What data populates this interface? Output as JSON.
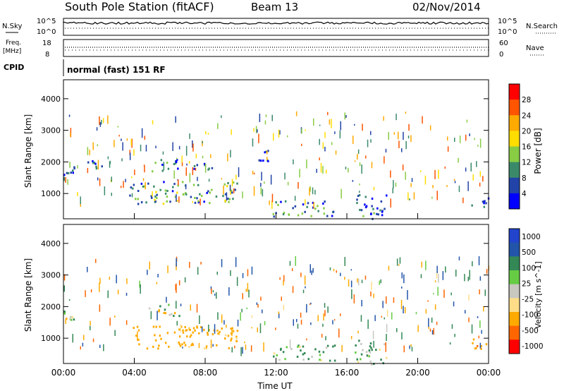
{
  "header": {
    "station": "South Pole Station (fitACF)",
    "beam": "Beam 13",
    "date": "02/Nov/2014"
  },
  "noise_panel": {
    "left_label": "N.Sky",
    "right_label": "N.Search",
    "left_ticks": [
      "10^5",
      "10^0"
    ],
    "right_ticks": [
      "10^5",
      "10^0"
    ]
  },
  "freq_panel": {
    "left_label_1": "Freq.",
    "left_label_2": "[MHz]",
    "right_label": "Nave",
    "left_ticks": [
      "18",
      "8"
    ],
    "right_ticks": [
      "60",
      "0"
    ]
  },
  "cpid": {
    "label": "CPID",
    "text": "normal (fast) 151 RF"
  },
  "colors": {
    "power_scale": [
      "#0000ff",
      "#2244a8",
      "#3a8a6a",
      "#88cc44",
      "#ffdd00",
      "#ffaa00",
      "#ff5500",
      "#ff0000"
    ],
    "velocity_scale": [
      "#ff0000",
      "#ff6600",
      "#ffaa00",
      "#ffdd88",
      "#c8c8c0",
      "#66cc44",
      "#338855",
      "#2255aa",
      "#2244cc"
    ]
  },
  "chart_data": [
    {
      "type": "heatmap",
      "title": "",
      "xlabel": "",
      "ylabel": "Slant Range [km]",
      "xlim": [
        0,
        24
      ],
      "ylim": [
        200,
        4600
      ],
      "yticks": [
        "1000",
        "2000",
        "3000",
        "4000"
      ],
      "colorbar_label": "Power [dB]",
      "colorbar_ticks": [
        "4",
        "8",
        "12",
        "16",
        "20",
        "24",
        "28"
      ],
      "echo_regions": [
        {
          "t0": 0.0,
          "t1": 0.7,
          "r0": 1600,
          "r1": 1900,
          "power_db": 6
        },
        {
          "t0": 1.3,
          "t1": 2.2,
          "r0": 1800,
          "r1": 2100,
          "power_db": 5
        },
        {
          "t0": 3.7,
          "t1": 9.8,
          "r0": 700,
          "r1": 1400,
          "power_db": 10
        },
        {
          "t0": 4.8,
          "t1": 6.5,
          "r0": 1700,
          "r1": 2100,
          "power_db": 8
        },
        {
          "t0": 7.2,
          "t1": 8.4,
          "r0": 1700,
          "r1": 2000,
          "power_db": 6
        },
        {
          "t0": 10.6,
          "t1": 11.6,
          "r0": 2000,
          "r1": 2400,
          "power_db": 5
        },
        {
          "t0": 11.8,
          "t1": 15.3,
          "r0": 300,
          "r1": 800,
          "power_db": 9
        },
        {
          "t0": 16.3,
          "t1": 18.2,
          "r0": 200,
          "r1": 1000,
          "power_db": 7
        },
        {
          "t0": 23.0,
          "t1": 24.0,
          "r0": 600,
          "r1": 1000,
          "power_db": 6
        }
      ]
    },
    {
      "type": "heatmap",
      "title": "",
      "xlabel": "Time UT",
      "ylabel": "Slant Range [km]",
      "xlim": [
        0,
        24
      ],
      "ylim": [
        200,
        4600
      ],
      "xticks": [
        "00:00",
        "04:00",
        "08:00",
        "12:00",
        "16:00",
        "20:00",
        "00:00"
      ],
      "yticks": [
        "1000",
        "2000",
        "3000",
        "4000"
      ],
      "colorbar_label": "Velocity [m s^-1]",
      "colorbar_ticks": [
        "1000",
        "500",
        "100",
        "25",
        "-25",
        "-100",
        "-500",
        "-1000"
      ],
      "echo_regions": [
        {
          "t0": 0.0,
          "t1": 0.7,
          "r0": 1600,
          "r1": 1900,
          "velocity": 0
        },
        {
          "t0": 3.7,
          "t1": 9.8,
          "r0": 700,
          "r1": 1400,
          "velocity": -200
        },
        {
          "t0": 4.8,
          "t1": 6.5,
          "r0": 1700,
          "r1": 2100,
          "velocity": 0
        },
        {
          "t0": 11.8,
          "t1": 15.3,
          "r0": 300,
          "r1": 800,
          "velocity": 120
        },
        {
          "t0": 16.3,
          "t1": 18.2,
          "r0": 200,
          "r1": 1000,
          "velocity": 80
        },
        {
          "t0": 23.0,
          "t1": 24.0,
          "r0": 600,
          "r1": 1000,
          "velocity": -400
        }
      ]
    }
  ]
}
